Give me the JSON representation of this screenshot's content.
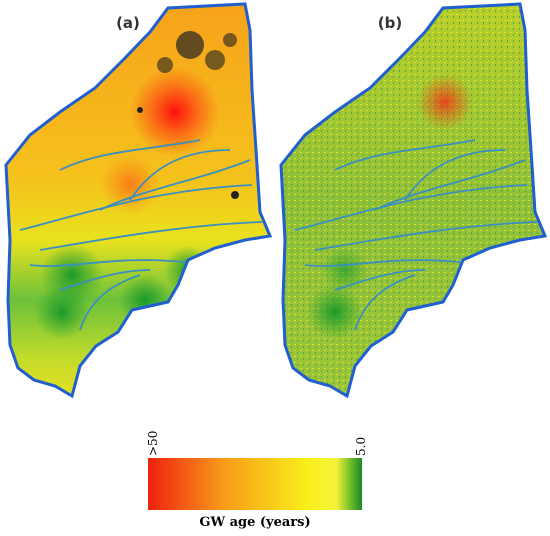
{
  "panels": [
    {
      "label": "(a)"
    },
    {
      "label": "(b)"
    }
  ],
  "legend": {
    "max_label": ">50",
    "min_label": "5.0",
    "title": "GW age (years)"
  }
}
